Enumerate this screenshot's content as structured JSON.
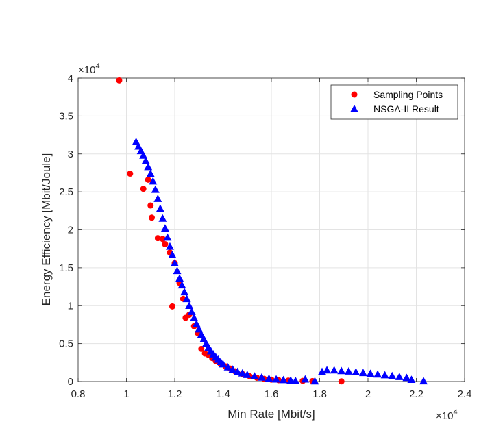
{
  "chart_data": {
    "type": "scatter",
    "title": "",
    "xlabel": "Min Rate [Mbit/s]",
    "ylabel": "Energy Efficiency [Mbit/Joule]",
    "xlim": [
      8000,
      24000
    ],
    "ylim": [
      0,
      40000
    ],
    "grid": true,
    "legend_position": "top-right",
    "x_ticks": [
      8000,
      10000,
      12000,
      14000,
      16000,
      18000,
      20000,
      22000,
      24000
    ],
    "x_tick_labels": [
      "0.8",
      "1",
      "1.2",
      "1.4",
      "1.6",
      "1.8",
      "2",
      "2.2",
      "2.4"
    ],
    "y_ticks": [
      0,
      5000,
      10000,
      15000,
      20000,
      25000,
      30000,
      35000,
      40000
    ],
    "y_tick_labels": [
      "0",
      "0.5",
      "1",
      "1.5",
      "2",
      "2.5",
      "3",
      "3.5",
      "4"
    ],
    "x_exponent_label": "×10",
    "x_exponent_power": "4",
    "y_exponent_label": "×10",
    "y_exponent_power": "4",
    "series": [
      {
        "name": "Sampling Points",
        "marker": "circle",
        "color": "#ff0000",
        "points": [
          [
            9700,
            39700
          ],
          [
            10150,
            27400
          ],
          [
            10700,
            25400
          ],
          [
            10900,
            26600
          ],
          [
            11000,
            23200
          ],
          [
            11050,
            21600
          ],
          [
            11300,
            18900
          ],
          [
            11500,
            18800
          ],
          [
            11600,
            18100
          ],
          [
            11800,
            17000
          ],
          [
            11900,
            9900
          ],
          [
            12000,
            15600
          ],
          [
            12200,
            13000
          ],
          [
            12350,
            10900
          ],
          [
            12450,
            8400
          ],
          [
            12600,
            8800
          ],
          [
            12800,
            7300
          ],
          [
            12950,
            6400
          ],
          [
            13100,
            4300
          ],
          [
            13250,
            3700
          ],
          [
            13400,
            3500
          ],
          [
            13550,
            3100
          ],
          [
            13700,
            2700
          ],
          [
            13900,
            2300
          ],
          [
            14100,
            2000
          ],
          [
            14300,
            1700
          ],
          [
            14500,
            1350
          ],
          [
            14800,
            1000
          ],
          [
            15100,
            700
          ],
          [
            15400,
            500
          ],
          [
            15700,
            350
          ],
          [
            16000,
            250
          ],
          [
            16300,
            180
          ],
          [
            16700,
            120
          ],
          [
            17300,
            80
          ],
          [
            17700,
            60
          ],
          [
            18900,
            20
          ]
        ]
      },
      {
        "name": "NSGA-II Result",
        "marker": "triangle",
        "color": "#0000ff",
        "points": [
          [
            10400,
            31600
          ],
          [
            10500,
            31000
          ],
          [
            10600,
            30400
          ],
          [
            10700,
            29800
          ],
          [
            10800,
            29100
          ],
          [
            10900,
            28300
          ],
          [
            11000,
            27400
          ],
          [
            11100,
            26400
          ],
          [
            11200,
            25300
          ],
          [
            11300,
            24100
          ],
          [
            11400,
            22800
          ],
          [
            11500,
            21500
          ],
          [
            11600,
            20200
          ],
          [
            11700,
            19000
          ],
          [
            11800,
            17800
          ],
          [
            11900,
            16700
          ],
          [
            12000,
            15600
          ],
          [
            12100,
            14600
          ],
          [
            12200,
            13600
          ],
          [
            12300,
            12700
          ],
          [
            12400,
            11800
          ],
          [
            12500,
            10900
          ],
          [
            12600,
            10000
          ],
          [
            12700,
            9200
          ],
          [
            12800,
            8400
          ],
          [
            12900,
            7600
          ],
          [
            13000,
            6900
          ],
          [
            13100,
            6200
          ],
          [
            13200,
            5600
          ],
          [
            13300,
            5000
          ],
          [
            13400,
            4500
          ],
          [
            13500,
            4000
          ],
          [
            13600,
            3600
          ],
          [
            13700,
            3200
          ],
          [
            13800,
            2900
          ],
          [
            13900,
            2600
          ],
          [
            14000,
            2300
          ],
          [
            14200,
            1900
          ],
          [
            14400,
            1600
          ],
          [
            14600,
            1300
          ],
          [
            14800,
            1100
          ],
          [
            15000,
            900
          ],
          [
            15300,
            700
          ],
          [
            15600,
            550
          ],
          [
            15900,
            400
          ],
          [
            16200,
            300
          ],
          [
            16500,
            220
          ],
          [
            16800,
            150
          ],
          [
            17000,
            90
          ],
          [
            17400,
            300
          ],
          [
            17800,
            50
          ],
          [
            18100,
            1300
          ],
          [
            18300,
            1500
          ],
          [
            18600,
            1500
          ],
          [
            18900,
            1400
          ],
          [
            19200,
            1350
          ],
          [
            19500,
            1250
          ],
          [
            19800,
            1150
          ],
          [
            20100,
            1050
          ],
          [
            20400,
            950
          ],
          [
            20700,
            850
          ],
          [
            21000,
            750
          ],
          [
            21300,
            620
          ],
          [
            21600,
            500
          ],
          [
            21800,
            250
          ],
          [
            22300,
            60
          ]
        ]
      }
    ]
  }
}
